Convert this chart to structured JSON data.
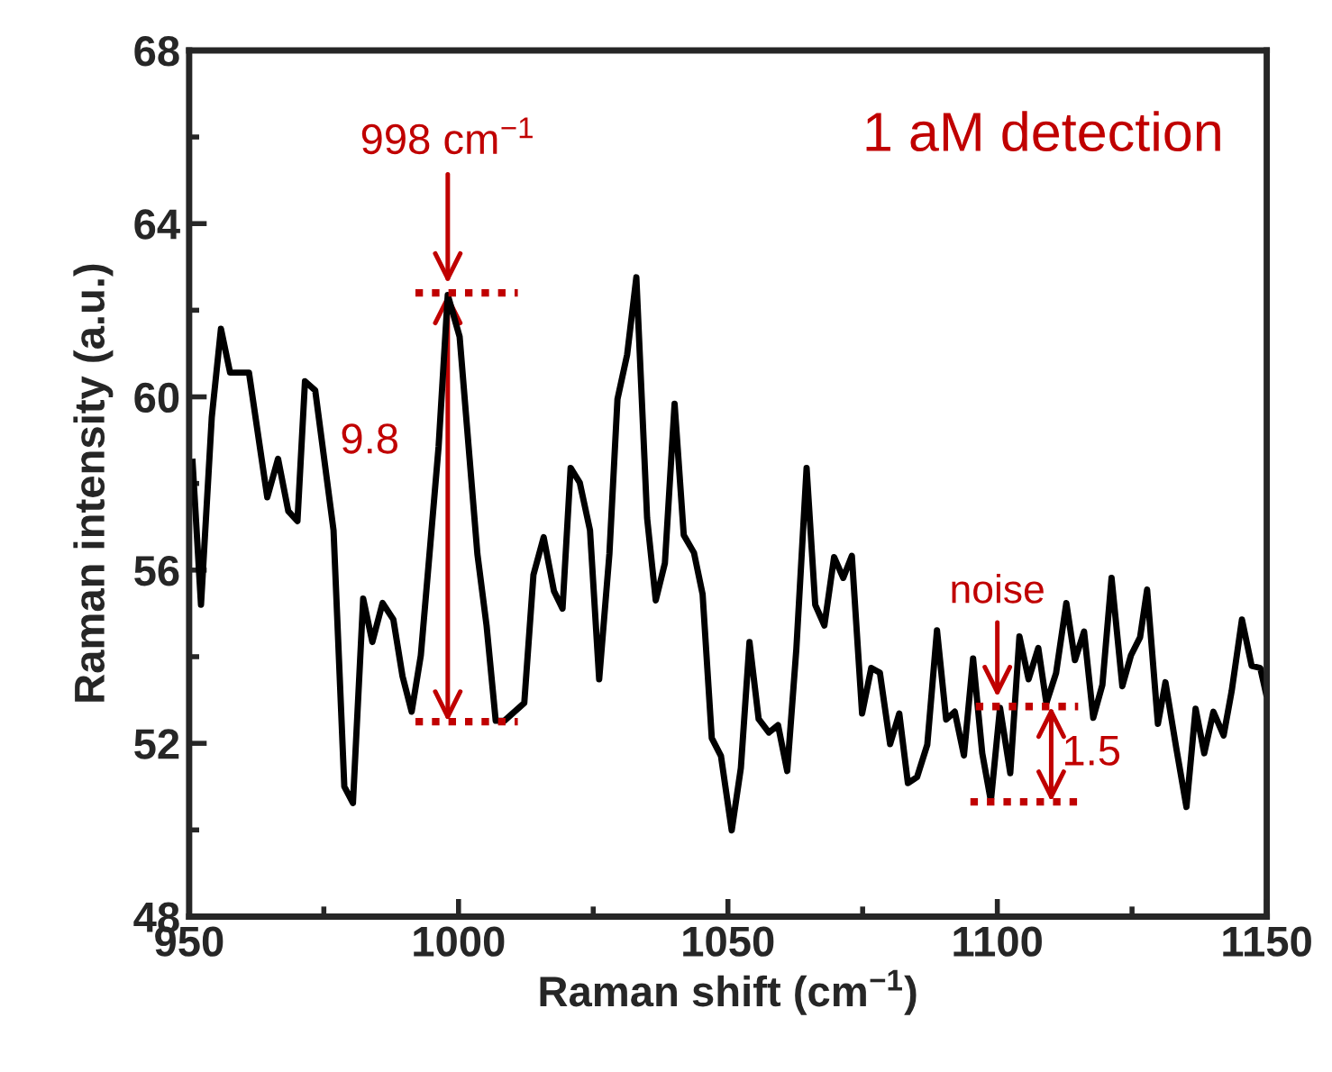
{
  "chart_data": {
    "type": "line",
    "xlabel": "Raman shift (cm$^{−1}$)",
    "ylabel": "Raman intensity (a.u.)",
    "x": [
      950.6,
      952.2,
      954.2,
      955.9,
      957.6,
      961.1,
      964.5,
      966.5,
      968.4,
      970.1,
      971.5,
      973.4,
      976.8,
      978.8,
      980.4,
      982.3,
      984.0,
      985.9,
      987.9,
      989.6,
      991.3,
      993.0,
      994.8,
      996.3,
      998.0,
      1000.2,
      1003.5,
      1005.2,
      1006.9,
      1008.5,
      1012.2,
      1013.9,
      1015.8,
      1017.7,
      1019.3,
      1020.8,
      1022.5,
      1024.4,
      1026.1,
      1028.0,
      1029.5,
      1031.3,
      1033.0,
      1035.0,
      1036.6,
      1038.3,
      1040.1,
      1041.8,
      1043.7,
      1045.3,
      1047.0,
      1048.7,
      1050.7,
      1052.4,
      1054.0,
      1055.7,
      1057.6,
      1059.3,
      1061.0,
      1062.7,
      1064.6,
      1066.2,
      1067.9,
      1069.7,
      1071.4,
      1073.0,
      1074.9,
      1076.6,
      1078.2,
      1080.1,
      1081.8,
      1083.4,
      1085.1,
      1087.0,
      1088.8,
      1090.5,
      1092.1,
      1093.8,
      1095.5,
      1097.2,
      1098.8,
      1100.5,
      1102.4,
      1104.1,
      1105.8,
      1107.6,
      1109.1,
      1110.9,
      1112.8,
      1114.4,
      1116.1,
      1117.8,
      1119.5,
      1121.2,
      1123.2,
      1124.8,
      1126.5,
      1127.8,
      1129.8,
      1131.2,
      1133.2,
      1135.1,
      1136.8,
      1138.4,
      1140.1,
      1142.0,
      1143.5,
      1145.4,
      1147.2,
      1148.8,
      1150.0
    ],
    "series": [
      {
        "color": "#000000",
        "values": [
          58.57,
          55.2,
          59.53,
          61.57,
          60.56,
          60.56,
          57.68,
          58.57,
          57.36,
          57.13,
          60.36,
          60.15,
          56.92,
          51.0,
          50.62,
          55.34,
          54.34,
          55.24,
          54.86,
          53.55,
          52.73,
          54.03,
          56.65,
          58.85,
          62.35,
          61.39,
          56.37,
          54.72,
          52.52,
          52.52,
          52.93,
          55.89,
          56.76,
          55.52,
          55.11,
          58.36,
          58.02,
          56.92,
          53.48,
          56.37,
          59.95,
          60.98,
          62.76,
          57.2,
          55.3,
          56.16,
          59.84,
          56.81,
          56.4,
          55.44,
          52.12,
          51.71,
          49.99,
          51.43,
          54.34,
          52.56,
          52.25,
          52.42,
          51.36,
          54.18,
          58.36,
          55.2,
          54.72,
          56.3,
          55.82,
          56.33,
          52.69,
          53.74,
          53.63,
          51.98,
          52.69,
          51.08,
          51.22,
          51.97,
          54.61,
          52.55,
          52.73,
          51.72,
          53.96,
          51.77,
          50.67,
          52.82,
          51.31,
          54.47,
          53.48,
          54.2,
          52.93,
          53.62,
          55.24,
          53.92,
          54.58,
          52.59,
          53.35,
          55.82,
          53.32,
          54.03,
          54.45,
          55.55,
          52.45,
          53.41,
          51.9,
          50.53,
          52.8,
          51.77,
          52.73,
          52.18,
          53.21,
          54.86,
          53.79,
          53.74,
          53.08
        ]
      },
      {
        "type": "line",
        "color": "#c00000",
        "line_style": "dotted",
        "x": [
          992,
          998,
          1011
        ],
        "values": [
          62.4,
          62.4,
          62.4
        ]
      },
      {
        "type": "line",
        "color": "#c00000",
        "line_style": "dotted",
        "x": [
          992,
          998,
          1011
        ],
        "values": [
          52.5,
          52.5,
          52.5
        ]
      },
      {
        "type": "line",
        "color": "#c00000",
        "line_style": "dotted",
        "x": [
          1096,
          1110,
          1115
        ],
        "values": [
          52.85,
          52.85,
          52.85
        ]
      },
      {
        "type": "line",
        "color": "#c00000",
        "line_style": "dotted",
        "x": [
          1095,
          1110,
          1115
        ],
        "values": [
          50.65,
          50.65,
          50.65
        ]
      }
    ],
    "xlim": [
      950,
      1150
    ],
    "xticks": [
      950,
      1000,
      1050,
      1100,
      1150
    ],
    "ylim": [
      48,
      68
    ],
    "yticks": [
      48,
      52,
      56,
      60,
      64,
      68
    ],
    "grid": false,
    "legend": false,
    "marker": "none",
    "line_style": "solid",
    "annotations": [
      "1 aM detection",
      {
        "text": "998 cm$^{−1}$",
        "x": 998,
        "y": 62.4
      },
      "9.8",
      {
        "text": "noise",
        "x": 1100,
        "y": 52.85
      },
      "1.5"
    ]
  }
}
